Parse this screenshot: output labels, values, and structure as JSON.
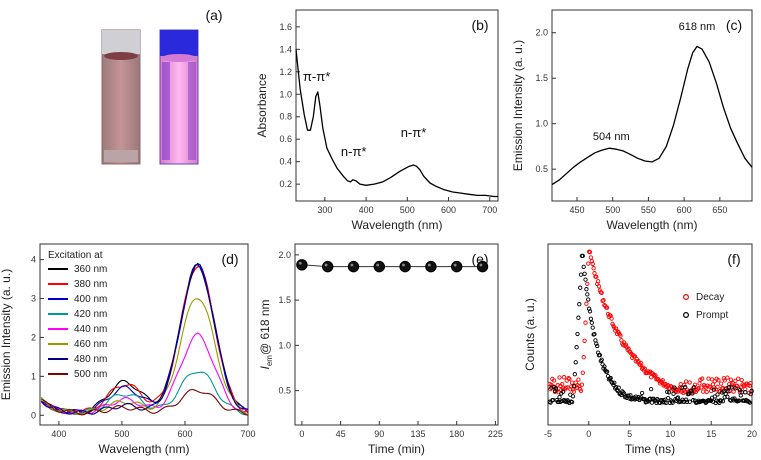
{
  "figure": {
    "panels": [
      {
        "label": "(a)"
      },
      {
        "label": "(b)"
      },
      {
        "label": "(c)"
      },
      {
        "label": "(d)"
      },
      {
        "label": "(e)"
      },
      {
        "label": "(f)"
      }
    ]
  },
  "chart_data": [
    {
      "id": "b",
      "type": "line",
      "title": "(b)",
      "xlabel": "Wavelength (nm)",
      "ylabel": "Absorbance",
      "xlim": [
        230,
        720
      ],
      "ylim": [
        0.05,
        1.75
      ],
      "xticks": [
        "300",
        "400",
        "500",
        "600",
        "700"
      ],
      "yticks": [
        "0.2",
        "0.4",
        "0.6",
        "0.8",
        "1.0",
        "1.2",
        "1.4",
        "1.6"
      ],
      "annotations": [
        {
          "text": "π-π*",
          "x": 280,
          "y": 1.12
        },
        {
          "text": "n-π*",
          "x": 370,
          "y": 0.45
        },
        {
          "text": "n-π*",
          "x": 515,
          "y": 0.62
        }
      ],
      "series": [
        {
          "name": "Absorbance",
          "color": "#000000",
          "x": [
            230,
            240,
            250,
            258,
            265,
            272,
            278,
            283,
            288,
            295,
            305,
            318,
            330,
            345,
            355,
            362,
            368,
            375,
            385,
            400,
            420,
            440,
            460,
            480,
            495,
            505,
            515,
            522,
            530,
            540,
            555,
            570,
            590,
            610,
            630,
            650,
            670,
            690,
            710,
            720
          ],
          "y": [
            1.4,
            1.05,
            0.82,
            0.68,
            0.68,
            0.8,
            0.98,
            1.02,
            0.9,
            0.7,
            0.52,
            0.42,
            0.34,
            0.27,
            0.23,
            0.22,
            0.24,
            0.23,
            0.2,
            0.19,
            0.2,
            0.22,
            0.26,
            0.31,
            0.34,
            0.36,
            0.37,
            0.36,
            0.33,
            0.27,
            0.21,
            0.18,
            0.15,
            0.13,
            0.12,
            0.11,
            0.1,
            0.1,
            0.09,
            0.09
          ]
        }
      ]
    },
    {
      "id": "c",
      "type": "line",
      "title": "(c)",
      "xlabel": "Wavelength (nm)",
      "ylabel": "Emission Intensity (a. u.)",
      "xlim": [
        415,
        695
      ],
      "ylim": [
        0.15,
        2.25
      ],
      "xticks": [
        "450",
        "500",
        "550",
        "600",
        "650"
      ],
      "yticks": [
        "0.5",
        "1.0",
        "1.5",
        "2.0"
      ],
      "annotations": [
        {
          "text": "504 nm",
          "x": 498,
          "y": 0.82
        },
        {
          "text": "618 nm",
          "x": 618,
          "y": 2.03
        }
      ],
      "series": [
        {
          "name": "Emission",
          "color": "#000000",
          "x": [
            415,
            425,
            435,
            445,
            455,
            465,
            475,
            485,
            495,
            505,
            515,
            525,
            535,
            545,
            555,
            565,
            575,
            585,
            595,
            605,
            612,
            618,
            625,
            635,
            645,
            655,
            665,
            675,
            685,
            695
          ],
          "y": [
            0.33,
            0.38,
            0.45,
            0.52,
            0.58,
            0.63,
            0.68,
            0.71,
            0.73,
            0.72,
            0.7,
            0.66,
            0.62,
            0.59,
            0.58,
            0.62,
            0.75,
            0.98,
            1.28,
            1.6,
            1.78,
            1.85,
            1.82,
            1.68,
            1.45,
            1.18,
            0.95,
            0.78,
            0.62,
            0.52
          ]
        }
      ]
    },
    {
      "id": "d",
      "type": "line",
      "title": "(d)",
      "xlabel": "Wavelength (nm)",
      "ylabel": "Emission Intensity (a. u.)",
      "xlim": [
        370,
        700
      ],
      "ylim": [
        -0.25,
        4.4
      ],
      "xticks": [
        "400",
        "500",
        "600",
        "700"
      ],
      "yticks": [
        "0",
        "1",
        "2",
        "3",
        "4"
      ],
      "legend_title": "Excitation at",
      "legend_position": "top-left",
      "series": [
        {
          "name": "360 nm",
          "color": "#000000",
          "peak": 3.8,
          "hump": 0.8
        },
        {
          "name": "380 nm",
          "color": "#ff0000",
          "peak": 3.8,
          "hump": 0.75
        },
        {
          "name": "400 nm",
          "color": "#0000cc",
          "peak": 3.78,
          "hump": 0.65
        },
        {
          "name": "420 nm",
          "color": "#009999",
          "peak": 1.1,
          "hump": 0.5
        },
        {
          "name": "440 nm",
          "color": "#ff00ff",
          "peak": 2.0,
          "hump": 0.35
        },
        {
          "name": "460 nm",
          "color": "#999900",
          "peak": 3.0,
          "hump": 0.3
        },
        {
          "name": "480 nm",
          "color": "#000080",
          "peak": 3.8,
          "hump": 0.2
        },
        {
          "name": "500 nm",
          "color": "#800000",
          "peak": 0.6,
          "hump": 0.15
        }
      ]
    },
    {
      "id": "e",
      "type": "scatter",
      "title": "(e)",
      "xlabel": "Time (min)",
      "ylabel": "I_em @ 618 nm",
      "ylabel_parts": [
        "I",
        "em",
        "@ 618 nm"
      ],
      "xlim": [
        -8,
        228
      ],
      "ylim": [
        0.12,
        2.12
      ],
      "xticks": [
        "0",
        "45",
        "90",
        "135",
        "180",
        "225"
      ],
      "yticks": [
        "0.5",
        "1.0",
        "1.5",
        "2.0"
      ],
      "series": [
        {
          "name": "I_em",
          "color": "#000000",
          "x": [
            0,
            30,
            60,
            90,
            120,
            150,
            180,
            210
          ],
          "y": [
            1.89,
            1.87,
            1.87,
            1.87,
            1.87,
            1.87,
            1.87,
            1.87
          ]
        }
      ]
    },
    {
      "id": "f",
      "type": "scatter",
      "title": "(f)",
      "xlabel": "Time (ns)",
      "ylabel": "Counts (a. u.)",
      "xlim": [
        -5,
        20
      ],
      "xticks": [
        "-5",
        "0",
        "5",
        "10",
        "15",
        "20"
      ],
      "legend_position": "top-right",
      "series": [
        {
          "name": "Decay",
          "color": "#ff0000",
          "rise": -1.0,
          "peak": 0.0,
          "tau": 4.5
        },
        {
          "name": "Prompt",
          "color": "#000000",
          "rise": -2.0,
          "peak": -0.8,
          "tau": 1.8
        }
      ]
    }
  ]
}
